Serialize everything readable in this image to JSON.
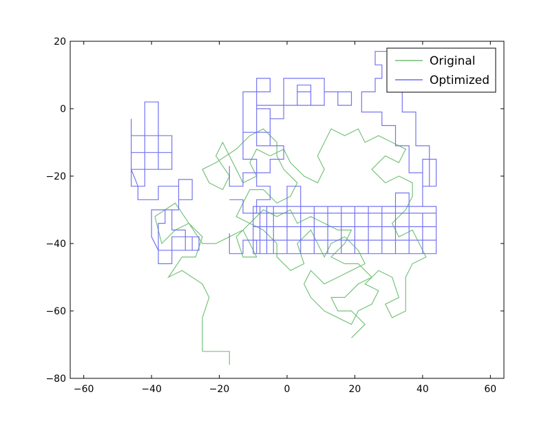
{
  "chart_data": {
    "type": "line",
    "title": "",
    "xlabel": "",
    "ylabel": "",
    "xlim": [
      -64,
      64
    ],
    "ylim": [
      -80,
      20
    ],
    "xticks": [
      -60,
      -40,
      -20,
      0,
      20,
      40,
      60
    ],
    "yticks": [
      20,
      0,
      -20,
      -40,
      -60,
      -80
    ],
    "xtick_labels": [
      "−60",
      "−40",
      "−20",
      "0",
      "20",
      "40",
      "60"
    ],
    "ytick_labels": [
      "20",
      "0",
      "−20",
      "−40",
      "−60",
      "−80"
    ],
    "grid": false,
    "legend_position": "top-right",
    "series": [
      {
        "name": "Original",
        "color": "#6fbf73",
        "points": [
          [
            -17,
            -76
          ],
          [
            -17,
            -72
          ],
          [
            -21,
            -72
          ],
          [
            -25,
            -72
          ],
          [
            -25,
            -68
          ],
          [
            -25,
            -62
          ],
          [
            -23,
            -56
          ],
          [
            -25,
            -52
          ],
          [
            -31,
            -48
          ],
          [
            -35,
            -50
          ],
          [
            -31,
            -44
          ],
          [
            -27,
            -44
          ],
          [
            -25,
            -38
          ],
          [
            -29,
            -34
          ],
          [
            -33,
            -36
          ],
          [
            -37,
            -40
          ],
          [
            -39,
            -32
          ],
          [
            -33,
            -28
          ],
          [
            -29,
            -34
          ],
          [
            -25,
            -40
          ],
          [
            -21,
            -40
          ],
          [
            -17,
            -38
          ],
          [
            -13,
            -36
          ],
          [
            -11,
            -40
          ],
          [
            -9,
            -44
          ],
          [
            -13,
            -44
          ],
          [
            -15,
            -38
          ],
          [
            -11,
            -34
          ],
          [
            -7,
            -36
          ],
          [
            -3,
            -40
          ],
          [
            -3,
            -44
          ],
          [
            1,
            -48
          ],
          [
            5,
            -46
          ],
          [
            3,
            -40
          ],
          [
            7,
            -36
          ],
          [
            9,
            -40
          ],
          [
            11,
            -44
          ],
          [
            13,
            -40
          ],
          [
            17,
            -38
          ],
          [
            21,
            -42
          ],
          [
            23,
            -46
          ],
          [
            19,
            -48
          ],
          [
            15,
            -50
          ],
          [
            11,
            -52
          ],
          [
            7,
            -48
          ],
          [
            5,
            -52
          ],
          [
            7,
            -56
          ],
          [
            11,
            -60
          ],
          [
            15,
            -62
          ],
          [
            19,
            -64
          ],
          [
            21,
            -60
          ],
          [
            25,
            -58
          ],
          [
            27,
            -54
          ],
          [
            23,
            -52
          ],
          [
            27,
            -48
          ],
          [
            31,
            -50
          ],
          [
            33,
            -56
          ],
          [
            29,
            -58
          ],
          [
            31,
            -62
          ],
          [
            35,
            -60
          ],
          [
            35,
            -56
          ],
          [
            35,
            -50
          ],
          [
            37,
            -46
          ],
          [
            41,
            -44
          ],
          [
            39,
            -40
          ],
          [
            37,
            -36
          ],
          [
            33,
            -38
          ],
          [
            31,
            -34
          ],
          [
            35,
            -30
          ],
          [
            37,
            -26
          ],
          [
            37,
            -22
          ],
          [
            33,
            -20
          ],
          [
            29,
            -22
          ],
          [
            25,
            -18
          ],
          [
            29,
            -14
          ],
          [
            33,
            -16
          ],
          [
            35,
            -12
          ],
          [
            31,
            -10
          ],
          [
            27,
            -8
          ],
          [
            23,
            -10
          ],
          [
            21,
            -6
          ],
          [
            17,
            -8
          ],
          [
            13,
            -6
          ],
          [
            11,
            -10
          ],
          [
            9,
            -14
          ],
          [
            11,
            -18
          ],
          [
            9,
            -22
          ],
          [
            5,
            -20
          ],
          [
            1,
            -16
          ],
          [
            -1,
            -12
          ],
          [
            -5,
            -14
          ],
          [
            -9,
            -12
          ],
          [
            -11,
            -16
          ],
          [
            -9,
            -20
          ],
          [
            -13,
            -22
          ],
          [
            -15,
            -18
          ],
          [
            -17,
            -14
          ],
          [
            -19,
            -10
          ],
          [
            -21,
            -14
          ],
          [
            -17,
            -20
          ],
          [
            -19,
            -24
          ],
          [
            -23,
            -22
          ],
          [
            -25,
            -18
          ],
          [
            -21,
            -16
          ],
          [
            -15,
            -12
          ],
          [
            -11,
            -8
          ],
          [
            -7,
            -6
          ],
          [
            -3,
            -10
          ],
          [
            -3,
            -14
          ],
          [
            -1,
            -18
          ],
          [
            3,
            -22
          ],
          [
            1,
            -26
          ],
          [
            -3,
            -28
          ],
          [
            -7,
            -24
          ],
          [
            -11,
            -24
          ],
          [
            -13,
            -28
          ],
          [
            -15,
            -32
          ],
          [
            -11,
            -34
          ],
          [
            -7,
            -30
          ],
          [
            -3,
            -32
          ],
          [
            1,
            -30
          ],
          [
            3,
            -34
          ],
          [
            7,
            -32
          ],
          [
            11,
            -34
          ],
          [
            15,
            -36
          ],
          [
            19,
            -36
          ],
          [
            17,
            -40
          ],
          [
            13,
            -44
          ],
          [
            17,
            -46
          ],
          [
            21,
            -46
          ],
          [
            25,
            -50
          ],
          [
            21,
            -52
          ],
          [
            17,
            -56
          ],
          [
            13,
            -56
          ],
          [
            15,
            -60
          ],
          [
            19,
            -60
          ],
          [
            23,
            -64
          ],
          [
            19,
            -68
          ]
        ]
      },
      {
        "name": "Optimized",
        "color": "#6c6cf0",
        "points": [
          [
            -46,
            -3
          ],
          [
            -46,
            -23
          ],
          [
            -42,
            -23
          ],
          [
            -42,
            2
          ],
          [
            -38,
            2
          ],
          [
            -38,
            -18
          ],
          [
            -34,
            -18
          ],
          [
            -34,
            -8
          ],
          [
            -46,
            -8
          ],
          [
            -46,
            -13
          ],
          [
            -34,
            -13
          ],
          [
            -34,
            -18
          ],
          [
            -46,
            -18
          ],
          [
            -44,
            -23
          ],
          [
            -44,
            -27
          ],
          [
            -38,
            -27
          ],
          [
            -38,
            -23
          ],
          [
            -32,
            -23
          ],
          [
            -32,
            -27
          ],
          [
            -28,
            -27
          ],
          [
            -28,
            -21
          ],
          [
            -32,
            -21
          ],
          [
            -32,
            -30
          ],
          [
            -36,
            -30
          ],
          [
            -36,
            -34
          ],
          [
            -38,
            -34
          ],
          [
            -38,
            -38
          ],
          [
            -38,
            -42
          ],
          [
            -34,
            -42
          ],
          [
            -34,
            -38
          ],
          [
            -26,
            -38
          ],
          [
            -26,
            -42
          ],
          [
            -30,
            -42
          ],
          [
            -30,
            -36
          ],
          [
            -34,
            -36
          ],
          [
            -34,
            -30
          ],
          [
            -38,
            -30
          ],
          [
            -40,
            -30
          ],
          [
            -40,
            -34
          ],
          [
            -40,
            -38
          ],
          [
            -38,
            -42
          ],
          [
            -38,
            -46
          ],
          [
            -34,
            -46
          ],
          [
            -34,
            -42
          ],
          [
            -28,
            -42
          ],
          [
            -28,
            -38
          ],
          [
            -26,
            -38
          ]
        ]
      },
      {
        "name": "Optimized",
        "color": "#6c6cf0",
        "points": [
          [
            -10,
            -43
          ],
          [
            -10,
            -29
          ],
          [
            44,
            -29
          ],
          [
            44,
            -43
          ],
          [
            -10,
            -43
          ],
          [
            -10,
            -39
          ],
          [
            44,
            -39
          ],
          [
            44,
            -35
          ],
          [
            -10,
            -35
          ],
          [
            -10,
            -31
          ],
          [
            44,
            -31
          ],
          [
            40,
            -31
          ],
          [
            40,
            -43
          ],
          [
            36,
            -43
          ],
          [
            36,
            -25
          ],
          [
            32,
            -25
          ],
          [
            32,
            -43
          ],
          [
            28,
            -43
          ],
          [
            28,
            -29
          ],
          [
            24,
            -29
          ],
          [
            24,
            -43
          ],
          [
            20,
            -43
          ],
          [
            20,
            -29
          ],
          [
            16,
            -29
          ],
          [
            16,
            -43
          ],
          [
            12,
            -43
          ],
          [
            12,
            -29
          ],
          [
            8,
            -29
          ],
          [
            8,
            -43
          ],
          [
            4,
            -43
          ],
          [
            4,
            -23
          ],
          [
            0,
            -23
          ],
          [
            0,
            -43
          ],
          [
            -4,
            -43
          ],
          [
            -4,
            -29
          ],
          [
            -6,
            -29
          ],
          [
            -6,
            -43
          ],
          [
            -8,
            -43
          ],
          [
            -8,
            -29
          ],
          [
            40,
            -29
          ],
          [
            40,
            -15
          ],
          [
            44,
            -15
          ],
          [
            44,
            -23
          ],
          [
            40,
            -23
          ],
          [
            40,
            -19
          ],
          [
            36,
            -19
          ],
          [
            36,
            -11
          ],
          [
            32,
            -11
          ],
          [
            32,
            -5
          ],
          [
            28,
            -5
          ],
          [
            28,
            -1
          ],
          [
            22,
            -1
          ],
          [
            22,
            5
          ],
          [
            26,
            5
          ],
          [
            26,
            9
          ],
          [
            28,
            9
          ],
          [
            28,
            13
          ],
          [
            26,
            13
          ],
          [
            26,
            17
          ],
          [
            30,
            17
          ],
          [
            30,
            5
          ],
          [
            34,
            5
          ],
          [
            34,
            -1
          ],
          [
            38,
            -1
          ],
          [
            38,
            -11
          ],
          [
            42,
            -11
          ],
          [
            42,
            -23
          ],
          [
            44,
            -23
          ]
        ]
      },
      {
        "name": "Optimized",
        "color": "#6c6cf0",
        "points": [
          [
            -13,
            -7
          ],
          [
            -13,
            5
          ],
          [
            -9,
            5
          ],
          [
            -9,
            9
          ],
          [
            -5,
            9
          ],
          [
            -5,
            5
          ],
          [
            -13,
            5
          ],
          [
            -9,
            5
          ],
          [
            -9,
            0
          ],
          [
            -5,
            0
          ],
          [
            -5,
            -7
          ],
          [
            -9,
            -7
          ],
          [
            -9,
            -11
          ],
          [
            -5,
            -11
          ],
          [
            -5,
            -3
          ],
          [
            -1,
            -3
          ],
          [
            -1,
            1
          ],
          [
            3,
            1
          ],
          [
            3,
            7
          ],
          [
            7,
            7
          ],
          [
            7,
            1
          ],
          [
            3,
            1
          ],
          [
            3,
            5
          ],
          [
            7,
            5
          ],
          [
            7,
            1
          ],
          [
            11,
            1
          ],
          [
            11,
            5
          ],
          [
            15,
            5
          ],
          [
            15,
            1
          ],
          [
            19,
            1
          ],
          [
            19,
            5
          ],
          [
            15,
            5
          ],
          [
            11,
            5
          ],
          [
            11,
            9
          ],
          [
            7,
            9
          ],
          [
            3,
            9
          ],
          [
            -1,
            9
          ],
          [
            -1,
            5
          ],
          [
            -1,
            1
          ],
          [
            -5,
            1
          ],
          [
            -9,
            1
          ],
          [
            -9,
            -7
          ],
          [
            -13,
            -7
          ],
          [
            -13,
            -15
          ],
          [
            -9,
            -15
          ],
          [
            -9,
            -19
          ],
          [
            -5,
            -19
          ],
          [
            -5,
            -15
          ],
          [
            -1,
            -15
          ],
          [
            -1,
            -11
          ],
          [
            -5,
            -11
          ]
        ]
      },
      {
        "name": "Optimized",
        "color": "#6c6cf0",
        "points": [
          [
            -17,
            -17
          ],
          [
            -17,
            -23
          ],
          [
            -13,
            -23
          ],
          [
            -13,
            -19
          ],
          [
            -9,
            -19
          ],
          [
            -9,
            -23
          ],
          [
            -5,
            -23
          ],
          [
            -5,
            -27
          ],
          [
            -9,
            -27
          ],
          [
            -9,
            -31
          ],
          [
            -13,
            -31
          ],
          [
            -13,
            -27
          ],
          [
            -17,
            -27
          ]
        ]
      },
      {
        "name": "Optimized",
        "color": "#6c6cf0",
        "points": [
          [
            -17,
            -37
          ],
          [
            -17,
            -43
          ],
          [
            -13,
            -43
          ],
          [
            -13,
            -39
          ],
          [
            -9,
            -39
          ],
          [
            -9,
            -43
          ]
        ]
      }
    ],
    "legend": [
      "Original",
      "Optimized"
    ]
  }
}
